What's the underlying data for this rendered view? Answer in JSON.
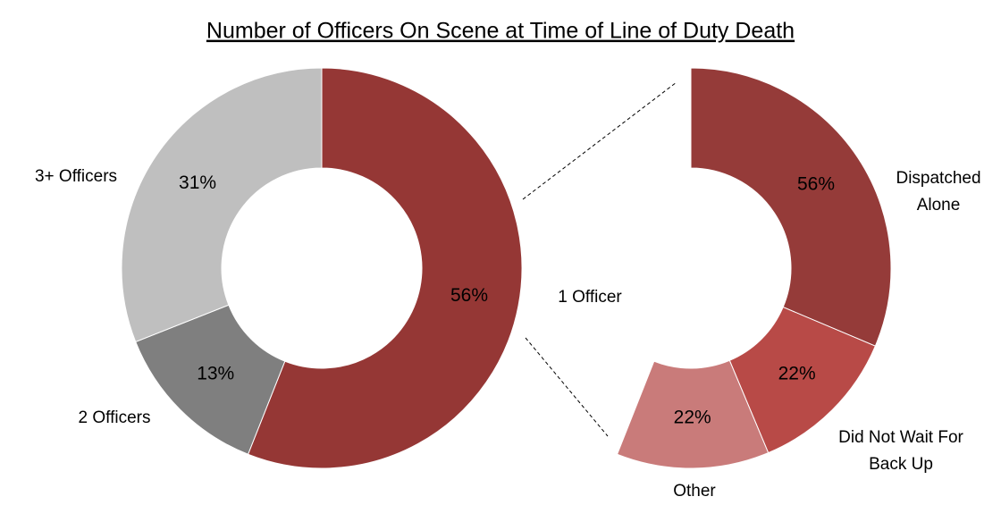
{
  "chart_data": [
    {
      "type": "donut",
      "title": "Number of Officers On Scene at Time of Line of Duty Death",
      "categories": [
        "1 Officer",
        "2 Officers",
        "3+ Officers"
      ],
      "values": [
        56,
        13,
        31
      ],
      "value_labels": [
        "56%",
        "13%",
        "31%"
      ],
      "colors": [
        "#953735",
        "#7f7f7f",
        "#bfbfbf"
      ]
    },
    {
      "type": "donut",
      "categories": [
        "Dispatched Alone",
        "Did Not Wait For Back Up",
        "Other"
      ],
      "values": [
        56,
        22,
        22
      ],
      "value_labels": [
        "56%",
        "22%",
        "22%"
      ],
      "colors": [
        "#953b39",
        "#b84a47",
        "#c97b7a"
      ]
    }
  ]
}
